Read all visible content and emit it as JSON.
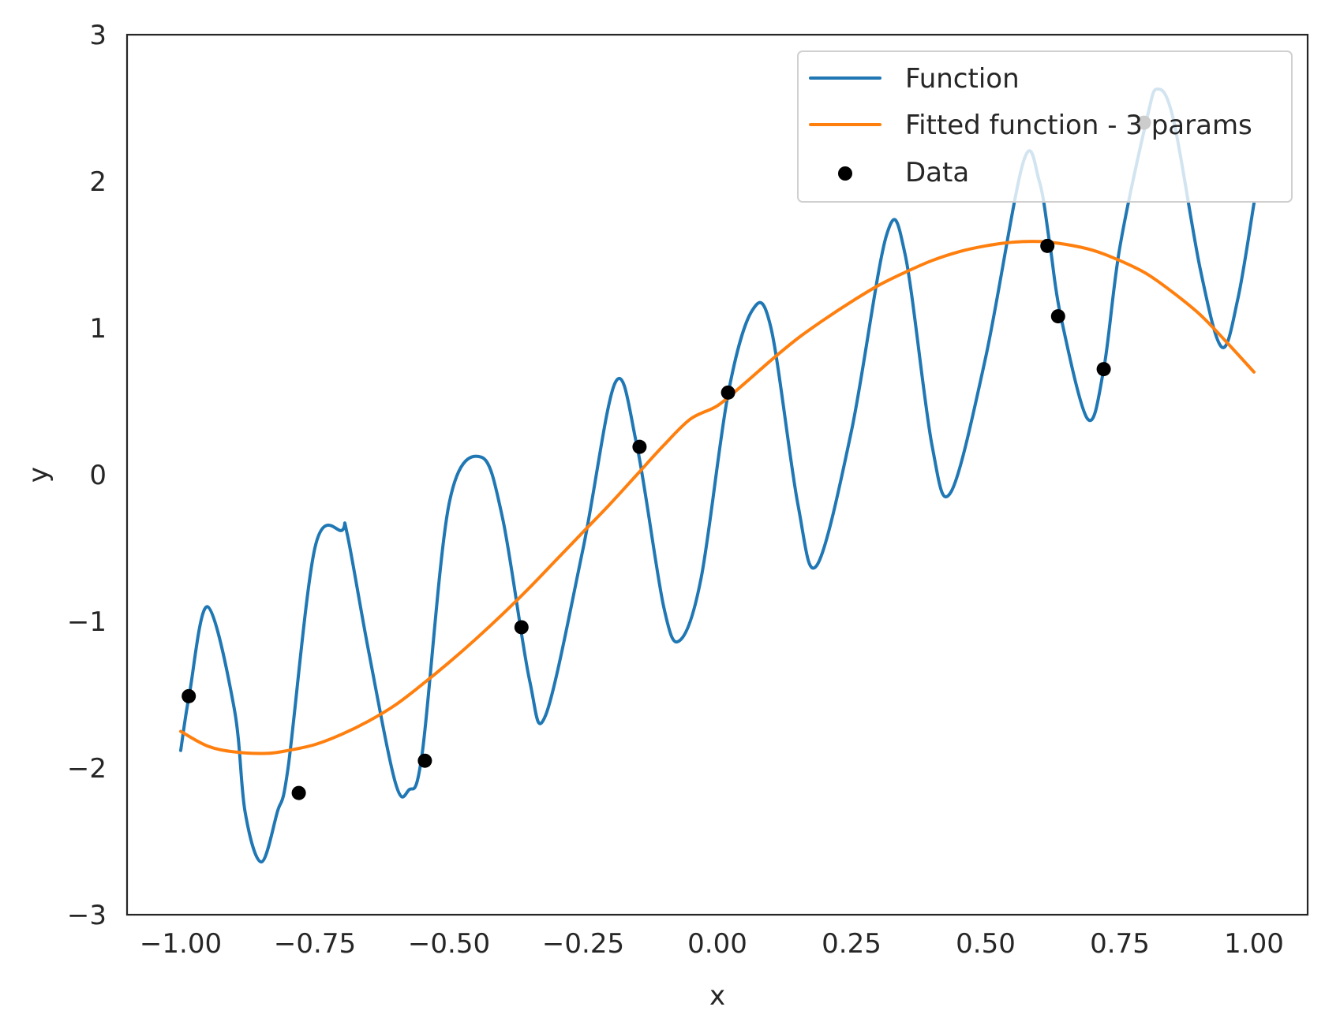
{
  "chart_data": {
    "type": "line",
    "title": "",
    "xlabel": "x",
    "ylabel": "y",
    "xlim": [
      -1.1,
      1.1
    ],
    "ylim": [
      -3,
      3
    ],
    "xticks": [
      -1.0,
      -0.75,
      -0.5,
      -0.25,
      0.0,
      0.25,
      0.5,
      0.75,
      1.0
    ],
    "xtick_labels": [
      "−1.00",
      "−0.75",
      "−0.50",
      "−0.25",
      "0.00",
      "0.25",
      "0.50",
      "0.75",
      "1.00"
    ],
    "yticks": [
      -3,
      -2,
      -1,
      0,
      1,
      2,
      3
    ],
    "ytick_labels": [
      "−3",
      "−2",
      "−1",
      "0",
      "1",
      "2",
      "3"
    ],
    "grid": false,
    "legend_position": "top-right",
    "series": [
      {
        "name": "Function",
        "kind": "line",
        "color": "#1f77b4",
        "x": [
          -1.0,
          -0.984,
          -0.95,
          -0.9,
          -0.88,
          -0.85,
          -0.82,
          -0.8,
          -0.75,
          -0.7,
          -0.69,
          -0.65,
          -0.6,
          -0.575,
          -0.55,
          -0.5,
          -0.44,
          -0.4,
          -0.35,
          -0.32,
          -0.25,
          -0.19,
          -0.15,
          -0.1,
          -0.07,
          -0.03,
          0.02,
          0.065,
          0.1,
          0.15,
          0.185,
          0.25,
          0.315,
          0.35,
          0.4,
          0.435,
          0.5,
          0.57,
          0.6,
          0.62,
          0.64,
          0.69,
          0.72,
          0.75,
          0.8,
          0.82,
          0.85,
          0.9,
          0.94,
          0.97,
          1.0
        ],
        "y": [
          -1.88,
          -1.5,
          -0.9,
          -1.6,
          -2.3,
          -2.64,
          -2.3,
          -2.0,
          -0.5,
          -0.38,
          -0.4,
          -1.2,
          -2.1,
          -2.15,
          -1.9,
          -0.2,
          0.12,
          -0.3,
          -1.4,
          -1.64,
          -0.5,
          0.63,
          0.2,
          -0.9,
          -1.13,
          -0.7,
          0.55,
          1.12,
          1.0,
          -0.2,
          -0.62,
          0.3,
          1.63,
          1.5,
          0.2,
          -0.12,
          0.8,
          2.13,
          2.0,
          1.56,
          1.08,
          0.38,
          0.72,
          1.55,
          2.42,
          2.63,
          2.42,
          1.4,
          0.87,
          1.2,
          1.85
        ]
      },
      {
        "name": "Fitted function - 3 params",
        "kind": "line",
        "color": "#ff7f0e",
        "x": [
          -1.0,
          -0.95,
          -0.9,
          -0.84,
          -0.8,
          -0.75,
          -0.7,
          -0.65,
          -0.6,
          -0.55,
          -0.5,
          -0.45,
          -0.4,
          -0.35,
          -0.3,
          -0.25,
          -0.2,
          -0.15,
          -0.1,
          -0.05,
          0.0,
          0.05,
          0.1,
          0.15,
          0.2,
          0.25,
          0.3,
          0.35,
          0.4,
          0.45,
          0.5,
          0.55,
          0.6,
          0.65,
          0.7,
          0.75,
          0.8,
          0.85,
          0.9,
          0.95,
          1.0
        ],
        "y": [
          -1.75,
          -1.85,
          -1.89,
          -1.9,
          -1.88,
          -1.84,
          -1.77,
          -1.68,
          -1.57,
          -1.43,
          -1.28,
          -1.12,
          -0.95,
          -0.77,
          -0.58,
          -0.39,
          -0.2,
          0.0,
          0.2,
          0.38,
          0.47,
          0.62,
          0.78,
          0.93,
          1.06,
          1.18,
          1.29,
          1.38,
          1.46,
          1.52,
          1.56,
          1.585,
          1.59,
          1.57,
          1.53,
          1.46,
          1.37,
          1.24,
          1.09,
          0.9,
          0.7
        ]
      },
      {
        "name": "Data",
        "kind": "scatter",
        "color": "#000000",
        "x": [
          -0.985,
          -0.78,
          -0.545,
          -0.365,
          -0.145,
          0.02,
          0.615,
          0.635,
          0.72,
          0.795
        ],
        "y": [
          -1.51,
          -2.17,
          -1.95,
          -1.04,
          0.19,
          0.56,
          1.56,
          1.08,
          0.72,
          2.4
        ]
      }
    ],
    "legend": [
      "Function",
      "Fitted function - 3 params",
      "Data"
    ]
  }
}
